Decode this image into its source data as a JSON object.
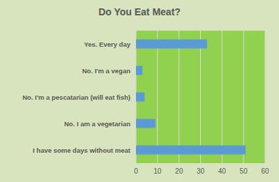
{
  "chart_data": {
    "type": "bar",
    "orientation": "horizontal",
    "title": "Do You Eat Meat?",
    "categories": [
      "Yes. Every day",
      "No. I'm a vegan",
      "No. I'm a pescatarian (will eat fish)",
      "No. I am a vegetarian",
      "I have some days without meat"
    ],
    "values": [
      33,
      3,
      4,
      9,
      51
    ],
    "color": "#5b9bd5",
    "xlim": [
      0,
      60
    ],
    "xticks": [
      0,
      10,
      20,
      30,
      40,
      50,
      60
    ],
    "grid": true
  }
}
